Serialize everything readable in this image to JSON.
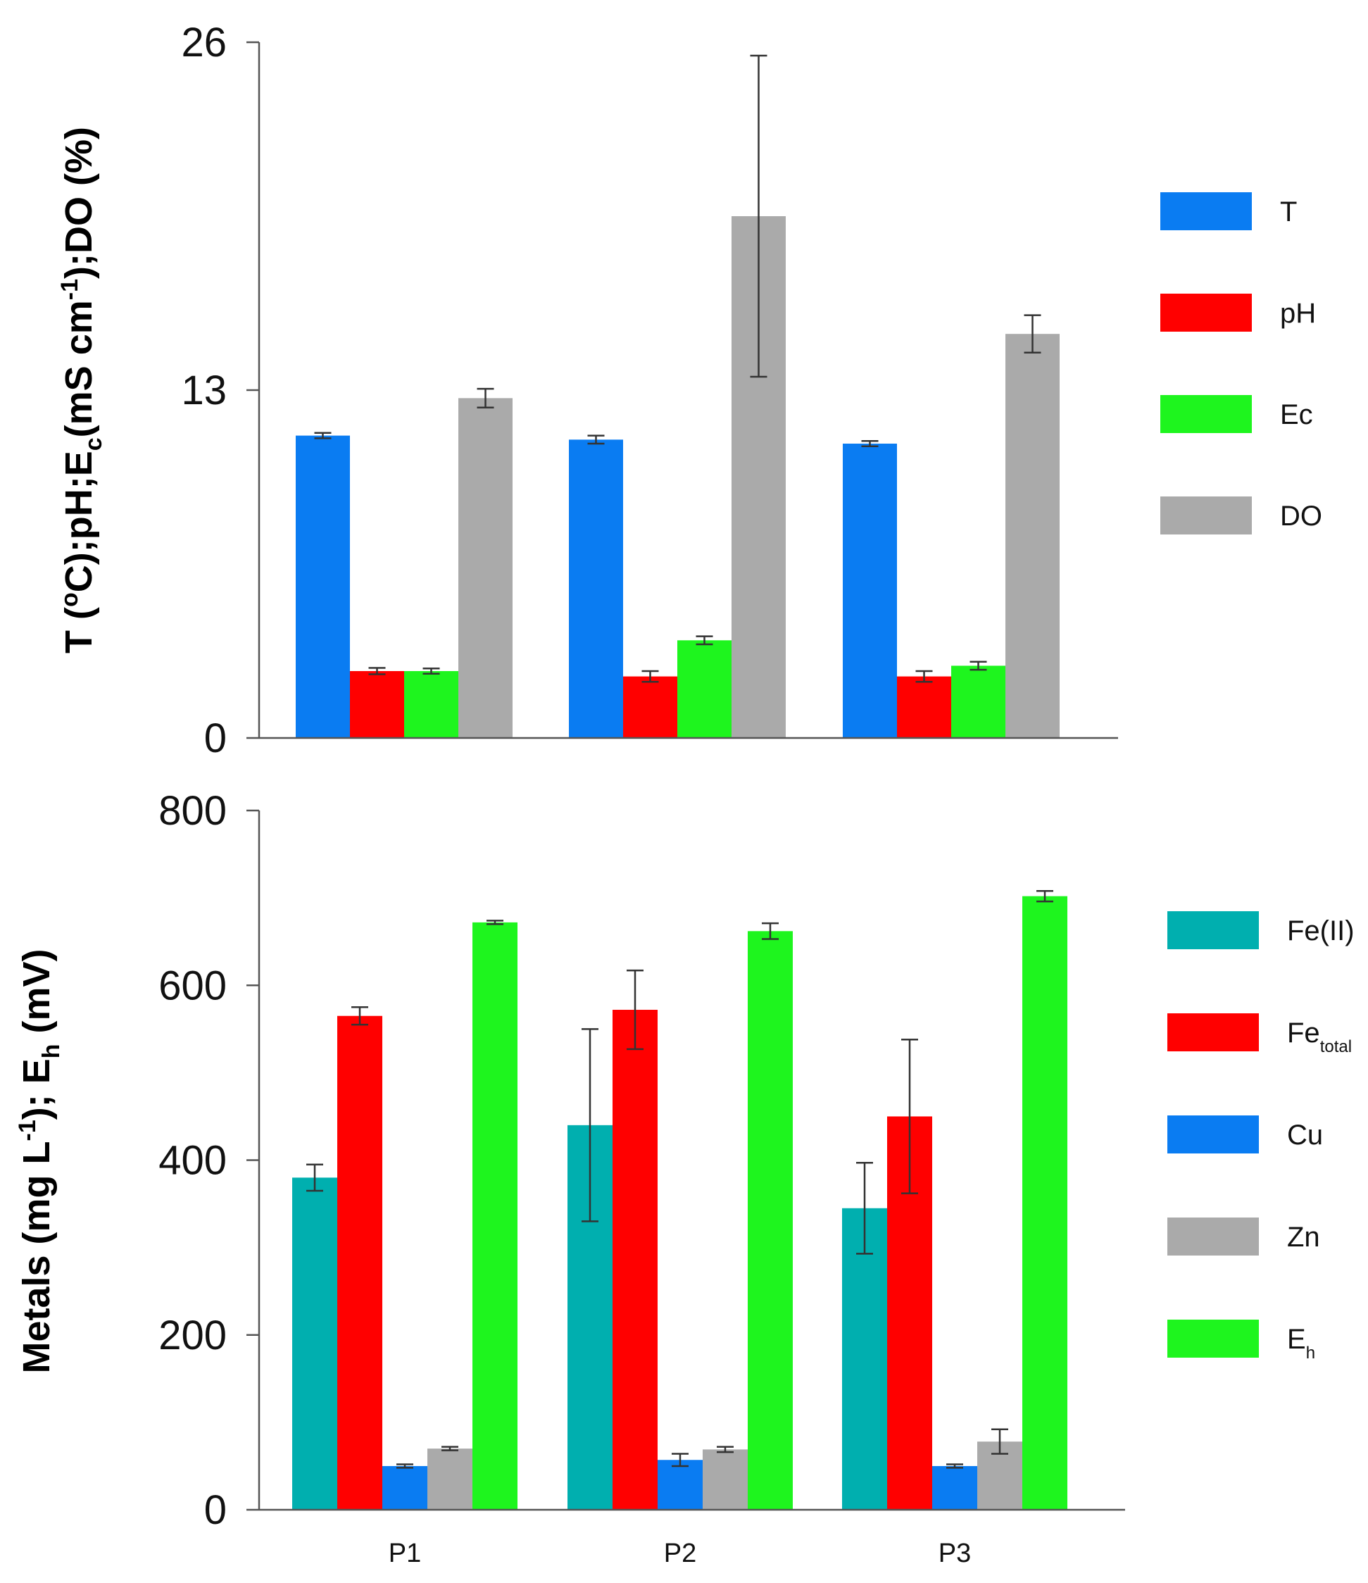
{
  "chart_data": [
    {
      "type": "bar",
      "categories": [
        "P1",
        "P2",
        "P3"
      ],
      "ylabel": "T (ºC);pH;Ec(mS cm-1);DO (%)",
      "ylabel_parts": [
        {
          "t": "T (",
          "s": ""
        },
        {
          "t": "o",
          "s": "sup"
        },
        {
          "t": "C);pH;E",
          "s": ""
        },
        {
          "t": "c",
          "s": "sub"
        },
        {
          "t": "(mS cm",
          "s": ""
        },
        {
          "t": "-1",
          "s": "sup"
        },
        {
          "t": ");DO (%)",
          "s": ""
        }
      ],
      "ylim": [
        0,
        26
      ],
      "yticks": [
        "0",
        "13",
        "26"
      ],
      "legend_position": "right",
      "series": [
        {
          "name": "T",
          "name_main": "T",
          "name_sub": "",
          "color": "#0A7CF2",
          "values": [
            11.3,
            11.15,
            11.0
          ],
          "errors": [
            0.1,
            0.15,
            0.1
          ]
        },
        {
          "name": "pH",
          "name_main": "pH",
          "name_sub": "",
          "color": "#FF0000",
          "values": [
            2.5,
            2.3,
            2.3
          ],
          "errors": [
            0.12,
            0.2,
            0.2
          ]
        },
        {
          "name": "Ec",
          "name_main": "Ec",
          "name_sub": "",
          "color": "#1EF51E",
          "values": [
            2.5,
            3.65,
            2.7
          ],
          "errors": [
            0.1,
            0.15,
            0.15
          ]
        },
        {
          "name": "DO",
          "name_main": "DO",
          "name_sub": "",
          "color": "#AAAAAA",
          "values": [
            12.7,
            19.5,
            15.1
          ],
          "errors": [
            0.35,
            6.0,
            0.7
          ]
        }
      ]
    },
    {
      "type": "bar",
      "categories": [
        "P1",
        "P2",
        "P3"
      ],
      "ylabel": "Metals (mg L-1); Eh (mV)",
      "ylabel_parts": [
        {
          "t": "Metals (mg L",
          "s": ""
        },
        {
          "t": "-1",
          "s": "sup"
        },
        {
          "t": "); E",
          "s": ""
        },
        {
          "t": "h",
          "s": "sub"
        },
        {
          "t": " (mV)",
          "s": ""
        }
      ],
      "ylim": [
        0,
        800
      ],
      "yticks": [
        "0",
        "200",
        "400",
        "600",
        "800"
      ],
      "legend_position": "right",
      "series": [
        {
          "name": "Fe(II)",
          "name_main": "Fe(II)",
          "name_sub": "",
          "color": "#00AFAF",
          "values": [
            380,
            440,
            345
          ],
          "errors": [
            15,
            110,
            52
          ]
        },
        {
          "name": "Fetotal",
          "name_main": "Fe",
          "name_sub": "total",
          "color": "#FF0000",
          "values": [
            565,
            572,
            450
          ],
          "errors": [
            10,
            45,
            88
          ]
        },
        {
          "name": "Cu",
          "name_main": "Cu",
          "name_sub": "",
          "color": "#0A7CF2",
          "values": [
            50,
            57,
            50
          ],
          "errors": [
            2,
            7,
            2
          ]
        },
        {
          "name": "Zn",
          "name_main": "Zn",
          "name_sub": "",
          "color": "#AAAAAA",
          "values": [
            70,
            69,
            78
          ],
          "errors": [
            2,
            3,
            14
          ]
        },
        {
          "name": "Eh",
          "name_main": "E",
          "name_sub": "h",
          "color": "#1EF51E",
          "values": [
            672,
            662,
            702
          ],
          "errors": [
            2,
            9,
            6
          ]
        }
      ]
    }
  ]
}
